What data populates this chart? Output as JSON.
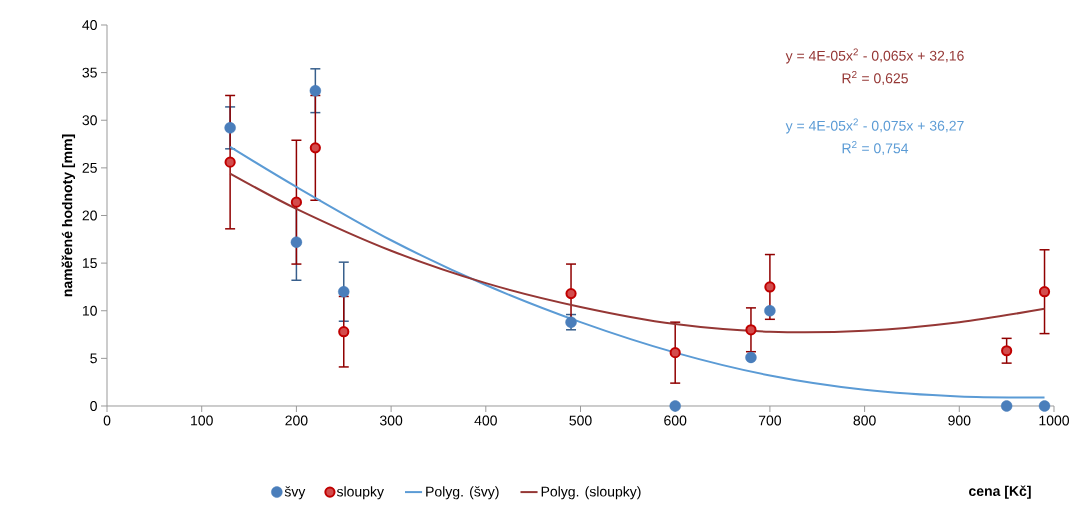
{
  "chart_data": {
    "type": "scatter",
    "xlabel": "cena [Kč]",
    "ylabel": "naměřené hodnoty [mm]",
    "x": [
      130,
      200,
      220,
      250,
      490,
      600,
      680,
      700,
      950,
      990
    ],
    "series": [
      {
        "name": "švy",
        "marker": "circle",
        "color": "#4a7ebb",
        "values": [
          29.2,
          17.2,
          33.1,
          12.0,
          8.8,
          0,
          5.1,
          10.0,
          0,
          0
        ],
        "errors": [
          2.2,
          4.0,
          2.3,
          3.1,
          0.8,
          null,
          null,
          null,
          null,
          null
        ]
      },
      {
        "name": "sloupky",
        "marker": "circle",
        "color": "#c00000",
        "values": [
          25.6,
          21.4,
          27.1,
          7.8,
          11.8,
          5.6,
          8.0,
          12.5,
          5.8,
          12.0
        ],
        "errors": [
          7.0,
          6.5,
          5.5,
          3.7,
          3.1,
          3.2,
          2.3,
          3.4,
          1.3,
          4.4
        ]
      },
      {
        "name": "Polyg. (švy)",
        "type": "line",
        "marker": "none",
        "color": "#5b9bd5",
        "x": [
          130,
          200,
          300,
          400,
          500,
          600,
          700,
          800,
          900,
          990
        ],
        "values": [
          27.2,
          23.0,
          17.4,
          12.7,
          8.8,
          5.6,
          3.2,
          1.7,
          1.0,
          0.9
        ]
      },
      {
        "name": "Polyg. (sloupky)",
        "type": "line",
        "marker": "none",
        "color": "#953735",
        "x": [
          130,
          200,
          300,
          400,
          500,
          600,
          700,
          800,
          900,
          990
        ],
        "values": [
          24.4,
          20.7,
          16.3,
          12.9,
          10.4,
          8.6,
          7.8,
          7.9,
          8.8,
          10.2
        ]
      }
    ],
    "annotations": [
      "y = 4E-05x$^{2}$ - 0,065x + 32,16",
      "R$^{2}$ = 0,625",
      "y = 4E-05x$^{2}$ - 0,075x + 36,27",
      "R$^{2}$ = 0,754"
    ],
    "xlim": [
      0,
      1000
    ],
    "xticks": [
      0,
      100,
      200,
      300,
      400,
      500,
      600,
      700,
      800,
      900,
      1000
    ],
    "ylim": [
      0,
      40
    ],
    "yticks": [
      0,
      5,
      10,
      15,
      20,
      25,
      30,
      35,
      40
    ],
    "grid": false,
    "legend": "bottom",
    "line_style": "solid"
  }
}
